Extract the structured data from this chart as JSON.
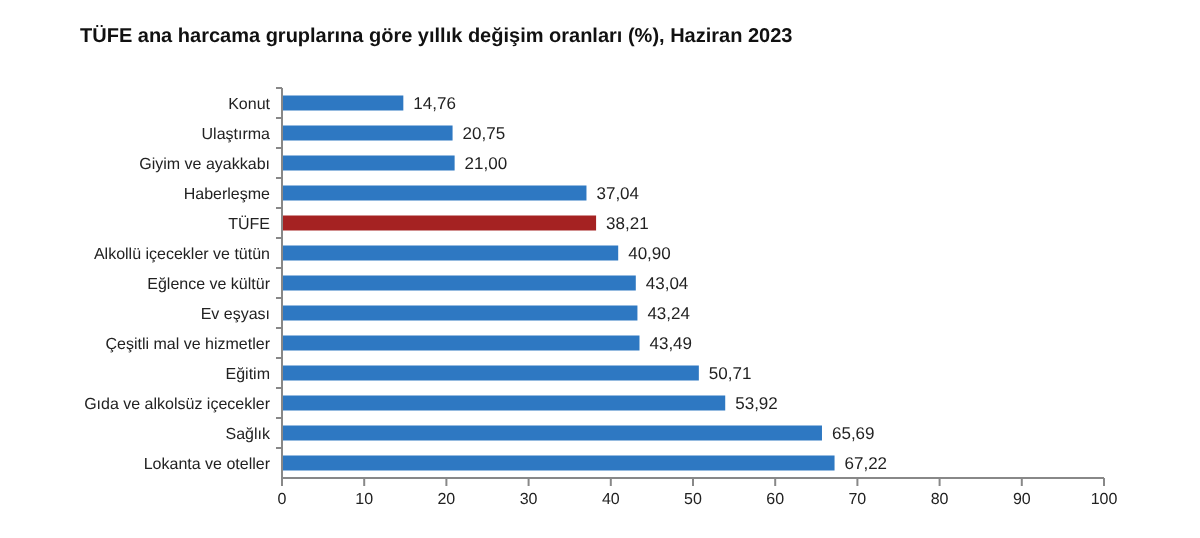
{
  "chart_data": {
    "type": "bar",
    "orientation": "horizontal",
    "title": "TÜFE ana harcama gruplarına göre yıllık değişim oranları (%), Haziran 2023",
    "categories": [
      "Konut",
      "Ulaştırma",
      "Giyim ve ayakkabı",
      "Haberleşme",
      "TÜFE",
      "Alkollü içecekler ve tütün",
      "Eğlence ve kültür",
      "Ev eşyası",
      "Çeşitli mal ve hizmetler",
      "Eğitim",
      "Gıda ve alkolsüz içecekler",
      "Sağlık",
      "Lokanta ve oteller"
    ],
    "values": [
      14.76,
      20.75,
      21.0,
      37.04,
      38.21,
      40.9,
      43.04,
      43.24,
      43.49,
      50.71,
      53.92,
      65.69,
      67.22
    ],
    "value_labels": [
      "14,76",
      "20,75",
      "21,00",
      "37,04",
      "38,21",
      "40,90",
      "43,04",
      "43,24",
      "43,49",
      "50,71",
      "53,92",
      "65,69",
      "67,22"
    ],
    "colors": [
      "#2e78c2",
      "#2e78c2",
      "#2e78c2",
      "#2e78c2",
      "#a52222",
      "#2e78c2",
      "#2e78c2",
      "#2e78c2",
      "#2e78c2",
      "#2e78c2",
      "#2e78c2",
      "#2e78c2",
      "#2e78c2"
    ],
    "xlim": [
      0,
      100
    ],
    "xticks": [
      0,
      10,
      20,
      30,
      40,
      50,
      60,
      70,
      80,
      90,
      100
    ],
    "grid": false
  }
}
